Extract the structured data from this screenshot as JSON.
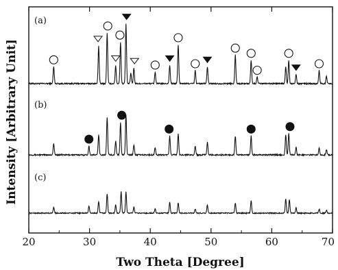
{
  "chart_data": {
    "type": "line",
    "title": "",
    "xlabel": "Two Theta [Degree]",
    "ylabel": "Intensity [Arbitrary Unit]",
    "xlim": [
      20,
      70
    ],
    "x_ticks": [
      20,
      30,
      40,
      50,
      60,
      70
    ],
    "grid": false,
    "legend": "none",
    "series": [
      {
        "panel_label": "(a)",
        "peaks": [
          {
            "x": 24.1,
            "height": 0.26
          },
          {
            "x": 31.5,
            "height": 0.58
          },
          {
            "x": 32.9,
            "height": 0.78
          },
          {
            "x": 34.3,
            "height": 0.28
          },
          {
            "x": 35.1,
            "height": 0.64
          },
          {
            "x": 36.0,
            "height": 0.92
          },
          {
            "x": 36.8,
            "height": 0.16
          },
          {
            "x": 37.3,
            "height": 0.24
          },
          {
            "x": 40.8,
            "height": 0.18
          },
          {
            "x": 43.2,
            "height": 0.28
          },
          {
            "x": 44.6,
            "height": 0.6
          },
          {
            "x": 47.4,
            "height": 0.2
          },
          {
            "x": 49.4,
            "height": 0.26
          },
          {
            "x": 54.0,
            "height": 0.44
          },
          {
            "x": 56.6,
            "height": 0.36
          },
          {
            "x": 57.6,
            "height": 0.1
          },
          {
            "x": 62.3,
            "height": 0.26
          },
          {
            "x": 62.8,
            "height": 0.36
          },
          {
            "x": 64.0,
            "height": 0.14
          },
          {
            "x": 67.8,
            "height": 0.2
          },
          {
            "x": 69.0,
            "height": 0.12
          }
        ],
        "markers": [
          {
            "x": 24.1,
            "shape": "open-circle"
          },
          {
            "x": 31.4,
            "shape": "open-triangle"
          },
          {
            "x": 33.0,
            "shape": "open-circle"
          },
          {
            "x": 34.3,
            "shape": "open-triangle"
          },
          {
            "x": 35.0,
            "shape": "open-circle"
          },
          {
            "x": 36.1,
            "shape": "filled-triangle"
          },
          {
            "x": 37.4,
            "shape": "open-triangle"
          },
          {
            "x": 40.8,
            "shape": "open-circle"
          },
          {
            "x": 43.2,
            "shape": "filled-triangle"
          },
          {
            "x": 44.6,
            "shape": "open-circle"
          },
          {
            "x": 47.4,
            "shape": "open-circle"
          },
          {
            "x": 49.4,
            "shape": "filled-triangle"
          },
          {
            "x": 54.0,
            "shape": "open-circle"
          },
          {
            "x": 56.6,
            "shape": "open-circle"
          },
          {
            "x": 57.6,
            "shape": "open-circle"
          },
          {
            "x": 62.8,
            "shape": "open-circle"
          },
          {
            "x": 64.0,
            "shape": "filled-triangle"
          },
          {
            "x": 67.8,
            "shape": "open-circle"
          }
        ]
      },
      {
        "panel_label": "(b)",
        "peaks": [
          {
            "x": 24.1,
            "height": 0.18
          },
          {
            "x": 29.9,
            "height": 0.14
          },
          {
            "x": 31.5,
            "height": 0.32
          },
          {
            "x": 32.9,
            "height": 0.6
          },
          {
            "x": 34.3,
            "height": 0.22
          },
          {
            "x": 35.1,
            "height": 0.52
          },
          {
            "x": 36.0,
            "height": 0.64
          },
          {
            "x": 37.3,
            "height": 0.16
          },
          {
            "x": 40.8,
            "height": 0.12
          },
          {
            "x": 43.2,
            "height": 0.3
          },
          {
            "x": 44.6,
            "height": 0.34
          },
          {
            "x": 47.4,
            "height": 0.14
          },
          {
            "x": 49.4,
            "height": 0.2
          },
          {
            "x": 54.0,
            "height": 0.3
          },
          {
            "x": 56.6,
            "height": 0.3
          },
          {
            "x": 62.3,
            "height": 0.32
          },
          {
            "x": 62.8,
            "height": 0.34
          },
          {
            "x": 64.0,
            "height": 0.12
          },
          {
            "x": 67.8,
            "height": 0.12
          },
          {
            "x": 69.0,
            "height": 0.08
          }
        ],
        "markers": [
          {
            "x": 29.9,
            "shape": "filled-circle"
          },
          {
            "x": 35.3,
            "shape": "filled-circle"
          },
          {
            "x": 43.1,
            "shape": "filled-circle"
          },
          {
            "x": 56.6,
            "shape": "filled-circle"
          },
          {
            "x": 63.0,
            "shape": "filled-circle"
          }
        ]
      },
      {
        "panel_label": "(c)",
        "peaks": [
          {
            "x": 24.1,
            "height": 0.12
          },
          {
            "x": 29.9,
            "height": 0.14
          },
          {
            "x": 31.5,
            "height": 0.22
          },
          {
            "x": 32.9,
            "height": 0.38
          },
          {
            "x": 34.3,
            "height": 0.16
          },
          {
            "x": 35.2,
            "height": 0.42
          },
          {
            "x": 36.0,
            "height": 0.42
          },
          {
            "x": 37.3,
            "height": 0.12
          },
          {
            "x": 40.8,
            "height": 0.08
          },
          {
            "x": 43.2,
            "height": 0.22
          },
          {
            "x": 44.6,
            "height": 0.2
          },
          {
            "x": 47.4,
            "height": 0.08
          },
          {
            "x": 49.4,
            "height": 0.16
          },
          {
            "x": 54.0,
            "height": 0.2
          },
          {
            "x": 56.6,
            "height": 0.24
          },
          {
            "x": 62.3,
            "height": 0.28
          },
          {
            "x": 62.9,
            "height": 0.26
          },
          {
            "x": 64.0,
            "height": 0.1
          },
          {
            "x": 67.8,
            "height": 0.08
          },
          {
            "x": 69.0,
            "height": 0.06
          }
        ],
        "markers": []
      }
    ]
  }
}
